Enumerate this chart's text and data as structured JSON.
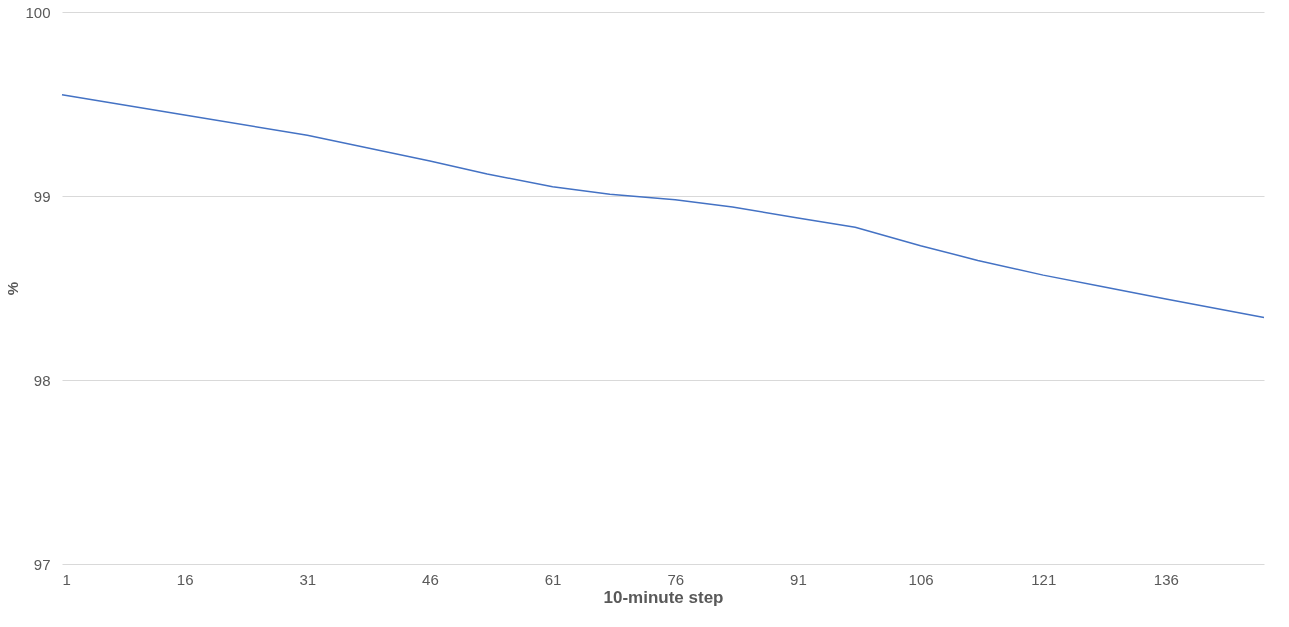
{
  "chart_data": {
    "type": "line",
    "xlabel": "10-minute step",
    "ylabel": "%",
    "x": [
      1,
      16,
      31,
      46,
      53,
      61,
      68,
      76,
      83,
      91,
      98,
      106,
      113,
      121,
      128,
      136,
      148
    ],
    "series": [
      {
        "color": "#4472c4",
        "values": [
          99.55,
          99.44,
          99.33,
          99.19,
          99.12,
          99.05,
          99.01,
          98.98,
          98.94,
          98.88,
          98.83,
          98.73,
          98.65,
          98.57,
          98.51,
          98.44,
          98.34
        ]
      }
    ],
    "xlim": [
      1,
      148
    ],
    "xticks": [
      1,
      16,
      31,
      46,
      61,
      76,
      91,
      106,
      121,
      136
    ],
    "ylim": [
      97,
      100
    ],
    "yticks": [
      97,
      98,
      99,
      100
    ],
    "grid": "y",
    "marker": "none",
    "line_style": "solid"
  }
}
